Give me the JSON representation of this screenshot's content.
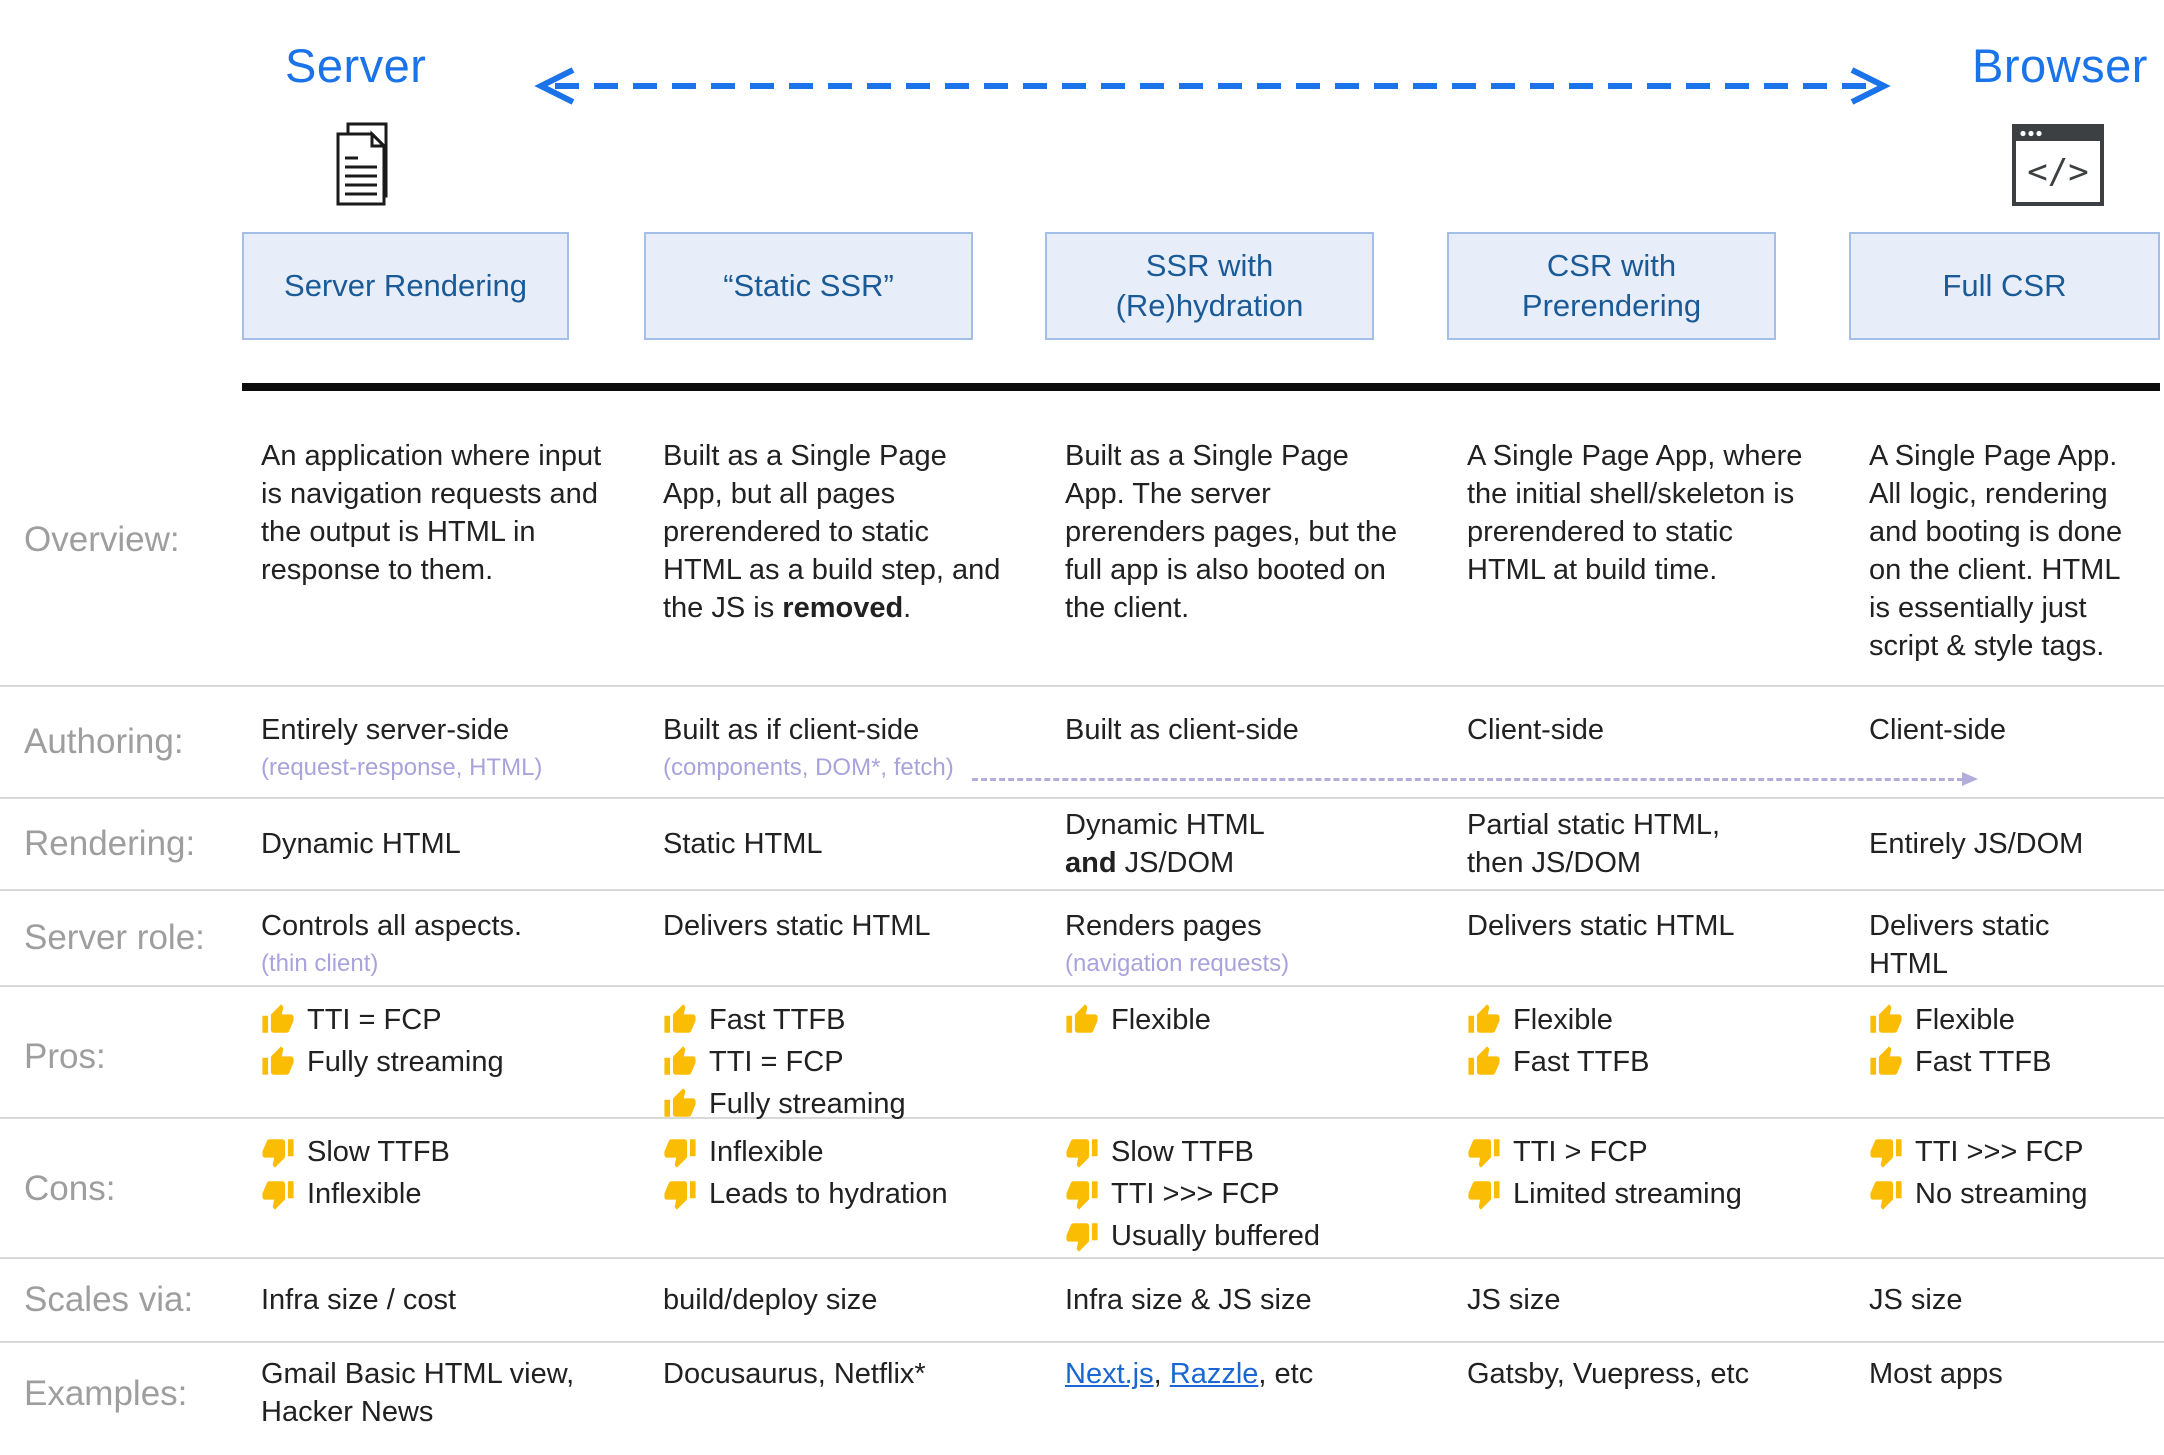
{
  "header": {
    "server_label": "Server",
    "browser_label": "Browser"
  },
  "columns": [
    "Server Rendering",
    "“Static SSR”",
    "SSR with\n(Re)hydration",
    "CSR with\nPrerendering",
    "Full CSR"
  ],
  "colors": {
    "accent_blue": "#1a73e8",
    "header_box_fill": "#e8eef9",
    "header_box_border": "#a3bfe8",
    "header_box_text": "#1a5a96",
    "note_lavender": "#a9a3dc",
    "divider_gray": "#d9d9d9",
    "thumb_yellow": "#fbbc04",
    "link_blue": "#1a66d2"
  },
  "icons": [
    "documents-icon",
    "browser-code-icon",
    "dashed-flow-arrow",
    "thumb-up-icon",
    "thumb-down-icon",
    "authoring-client-side-arrow"
  ],
  "rows": {
    "overview": {
      "label": "Overview:",
      "cells": [
        [
          {
            "t": "An application where input is navigation requests and the output is HTML in response to them."
          }
        ],
        [
          {
            "t": "Built as a Single Page App, but all pages prerendered to static HTML as a build step, and the JS is "
          },
          {
            "t": "removed",
            "b": true
          },
          {
            "t": "."
          }
        ],
        [
          {
            "t": "Built as a Single Page App. The server prerenders pages, but the full app is also booted on the client."
          }
        ],
        [
          {
            "t": "A Single Page App, where the initial shell/skeleton is prerendered to static HTML at build time."
          }
        ],
        [
          {
            "t": "A Single Page App. All logic, rendering and booting is done on the client. HTML is essentially just script & style tags."
          }
        ]
      ]
    },
    "authoring": {
      "label": "Authoring:",
      "cells": [
        {
          "main": "Entirely server-side",
          "note": "(request-response, HTML)"
        },
        {
          "main": "Built as if client-side",
          "note": "(components, DOM*, fetch)"
        },
        {
          "main": "Built as client-side"
        },
        {
          "main": "Client-side"
        },
        {
          "main": "Client-side"
        }
      ]
    },
    "rendering": {
      "label": "Rendering:",
      "cells": [
        [
          {
            "t": "Dynamic HTML"
          }
        ],
        [
          {
            "t": "Static HTML"
          }
        ],
        [
          {
            "t": "Dynamic HTML"
          },
          {
            "br": true
          },
          {
            "t": "and",
            "b": true
          },
          {
            "t": " JS/DOM"
          }
        ],
        [
          {
            "t": "Partial static HTML,"
          },
          {
            "br": true
          },
          {
            "t": "then JS/DOM"
          }
        ],
        [
          {
            "t": "Entirely JS/DOM"
          }
        ]
      ]
    },
    "server_role": {
      "label": "Server role:",
      "cells": [
        {
          "main": "Controls all aspects.",
          "note": "(thin client)"
        },
        {
          "main": "Delivers static HTML"
        },
        {
          "main": "Renders pages",
          "note": "(navigation requests)"
        },
        {
          "main": "Delivers static HTML"
        },
        {
          "main": "Delivers static HTML"
        }
      ]
    },
    "pros": {
      "label": "Pros:",
      "cells": [
        [
          "TTI = FCP",
          "Fully streaming"
        ],
        [
          "Fast TTFB",
          "TTI = FCP",
          "Fully streaming"
        ],
        [
          "Flexible"
        ],
        [
          "Flexible",
          "Fast TTFB"
        ],
        [
          "Flexible",
          "Fast TTFB"
        ]
      ]
    },
    "cons": {
      "label": "Cons:",
      "cells": [
        [
          "Slow TTFB",
          "Inflexible"
        ],
        [
          "Inflexible",
          "Leads to hydration"
        ],
        [
          "Slow TTFB",
          "TTI >>> FCP",
          "Usually buffered"
        ],
        [
          "TTI > FCP",
          "Limited streaming"
        ],
        [
          "TTI >>> FCP",
          "No streaming"
        ]
      ]
    },
    "scales": {
      "label": "Scales via:",
      "cells": [
        "Infra size / cost",
        "build/deploy size",
        "Infra size & JS size",
        "JS size",
        "JS size"
      ]
    },
    "examples": {
      "label": "Examples:",
      "cells": [
        [
          {
            "t": "Gmail Basic HTML view,"
          },
          {
            "br": true
          },
          {
            "t": "Hacker News"
          }
        ],
        [
          {
            "t": "Docusaurus, Netflix*"
          }
        ],
        [
          {
            "t": "Next.js",
            "link": true
          },
          {
            "t": ", "
          },
          {
            "t": "Razzle",
            "link": true
          },
          {
            "t": ", etc"
          }
        ],
        [
          {
            "t": "Gatsby, Vuepress, etc"
          }
        ],
        [
          {
            "t": "Most apps"
          }
        ]
      ]
    }
  }
}
